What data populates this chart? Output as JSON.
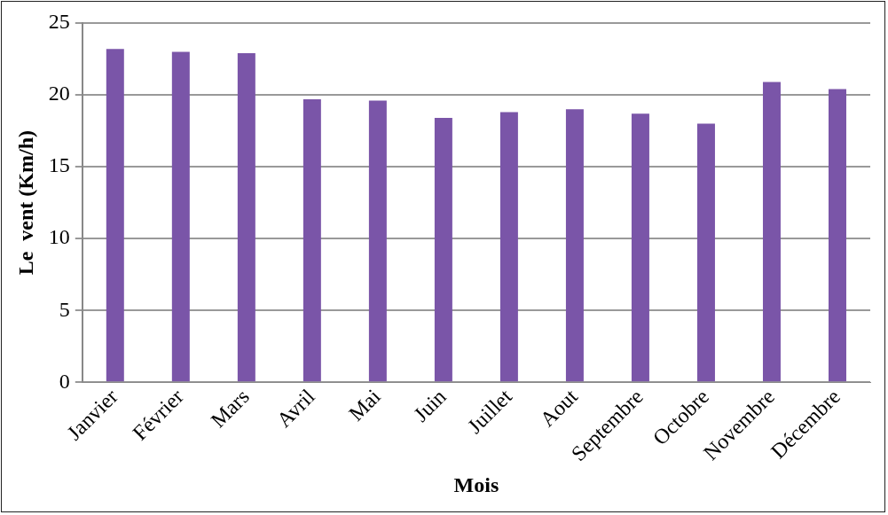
{
  "chart_data": {
    "type": "bar",
    "xlabel": "Mois",
    "ylabel": "Le  vent (Km/h)",
    "categories": [
      "Janvier",
      "Février",
      "Mars",
      "Avril",
      "Mai",
      "Juin",
      "Juillet",
      "Aout",
      "Septembre",
      "Octobre",
      "Novembre",
      "Décembre"
    ],
    "values": [
      23.2,
      23.0,
      22.9,
      19.7,
      19.6,
      18.4,
      18.8,
      19.0,
      18.7,
      18.0,
      20.9,
      20.4
    ],
    "color": "#7a55a8",
    "ylim": [
      0,
      25
    ],
    "yticks": [
      0,
      5,
      10,
      15,
      20,
      25
    ],
    "grid": "y",
    "legend": false
  }
}
